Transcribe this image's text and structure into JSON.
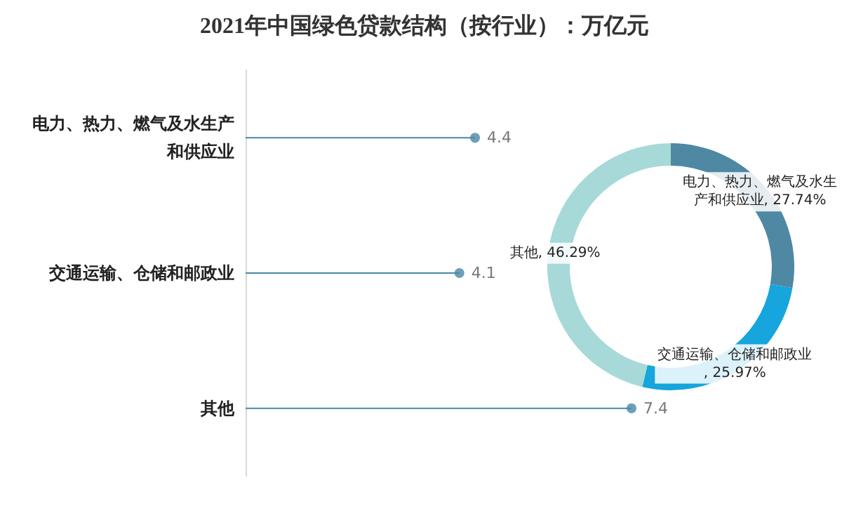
{
  "chart_data": [
    {
      "type": "lollipop",
      "title": "2021年中国绿色贷款结构（按行业）：万亿元",
      "orientation": "horizontal",
      "categories": [
        "电力、热力、燃气及水生产和供应业",
        "交通运输、仓储和邮政业",
        "其他"
      ],
      "values": [
        4.4,
        4.1,
        7.4
      ],
      "color": "#4a87a6",
      "data_labels": true,
      "marker": "circle"
    },
    {
      "type": "donut",
      "categories": [
        "电力、热力、燃气及水生产和供应业",
        "交通运输、仓储和邮政业",
        "其他"
      ],
      "values": [
        27.74,
        25.97,
        46.29
      ],
      "colors": [
        "#4f88a3",
        "#16a5dc",
        "#a7d9d8"
      ],
      "value_labels": [
        ", 27.74%",
        ", 25.97%",
        ", 46.29%"
      ],
      "data_labels": true
    }
  ]
}
